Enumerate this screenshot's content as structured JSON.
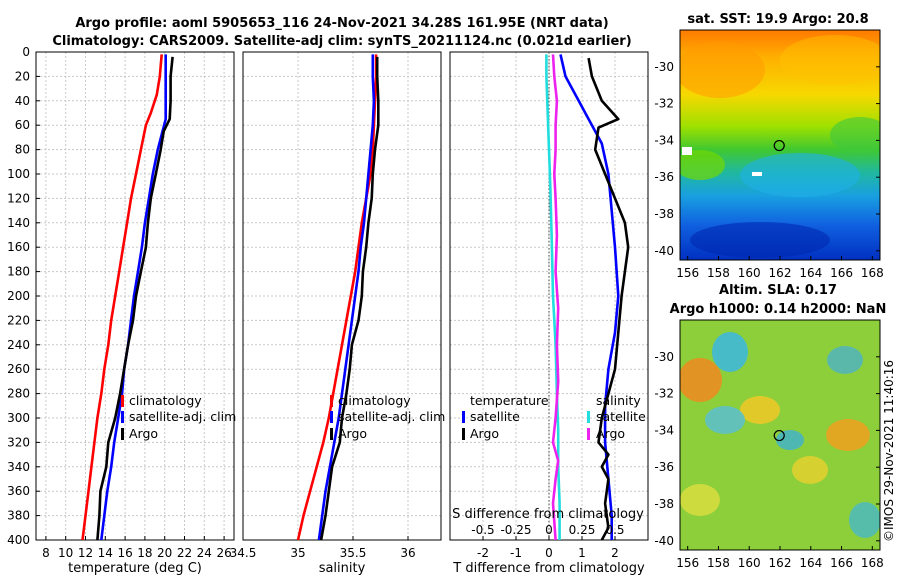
{
  "header": {
    "title_line1": "Argo profile: aoml 5905653_116 24-Nov-2021 34.28S 161.95E (NRT data)",
    "title_line2": "Climatology: CARS2009. Satellite-adj clim: synTS_20211124.nc (0.021d earlier)"
  },
  "credit": "©IMOS 29-Nov-2021 11:40:16",
  "colors": {
    "climatology": "#ff0000",
    "satellite": "#0000ff",
    "argo": "#000000",
    "cyan": "#22dddd",
    "magenta": "#ee22ee"
  },
  "chart_data": [
    {
      "type": "line",
      "name": "temperature",
      "xlabel": "temperature (deg C)",
      "ylabel": "",
      "xlim": [
        7,
        27
      ],
      "ylim": [
        400,
        0
      ],
      "xticks": [
        "8",
        "10",
        "12",
        "14",
        "16",
        "18",
        "20",
        "22",
        "24",
        "26"
      ],
      "yticks": [
        "0",
        "20",
        "40",
        "60",
        "80",
        "100",
        "120",
        "140",
        "160",
        "180",
        "200",
        "220",
        "240",
        "260",
        "280",
        "300",
        "320",
        "340",
        "360",
        "380",
        "400"
      ],
      "grid": true,
      "legend": [
        "climatology",
        "satellite-adj. clim",
        "Argo"
      ],
      "series": [
        {
          "name": "climatology",
          "color": "red",
          "points": [
            [
              19.7,
              2
            ],
            [
              19.5,
              20
            ],
            [
              19.2,
              35
            ],
            [
              18.6,
              50
            ],
            [
              18.1,
              60
            ],
            [
              17.6,
              80
            ],
            [
              17.1,
              100
            ],
            [
              16.6,
              120
            ],
            [
              16.2,
              140
            ],
            [
              15.8,
              160
            ],
            [
              15.4,
              180
            ],
            [
              15.0,
              200
            ],
            [
              14.6,
              220
            ],
            [
              14.3,
              240
            ],
            [
              13.9,
              260
            ],
            [
              13.6,
              280
            ],
            [
              13.2,
              300
            ],
            [
              12.9,
              320
            ],
            [
              12.6,
              340
            ],
            [
              12.3,
              360
            ],
            [
              12.0,
              380
            ],
            [
              11.7,
              400
            ]
          ]
        },
        {
          "name": "satellite-adj. clim",
          "color": "blue",
          "points": [
            [
              20.1,
              2
            ],
            [
              20.1,
              20
            ],
            [
              20.1,
              55
            ],
            [
              19.3,
              80
            ],
            [
              18.8,
              100
            ],
            [
              18.4,
              120
            ],
            [
              18.0,
              140
            ],
            [
              17.7,
              160
            ],
            [
              17.3,
              180
            ],
            [
              16.9,
              200
            ],
            [
              16.6,
              220
            ],
            [
              16.3,
              240
            ],
            [
              15.9,
              260
            ],
            [
              15.7,
              280
            ],
            [
              15.3,
              300
            ],
            [
              14.9,
              320
            ],
            [
              14.6,
              340
            ],
            [
              14.2,
              360
            ],
            [
              13.9,
              380
            ],
            [
              13.6,
              400
            ]
          ]
        },
        {
          "name": "Argo",
          "color": "black",
          "points": [
            [
              20.8,
              4
            ],
            [
              20.6,
              20
            ],
            [
              20.6,
              40
            ],
            [
              20.5,
              55
            ],
            [
              19.9,
              65
            ],
            [
              19.6,
              80
            ],
            [
              19.1,
              100
            ],
            [
              18.6,
              120
            ],
            [
              18.3,
              140
            ],
            [
              18.1,
              160
            ],
            [
              17.6,
              180
            ],
            [
              17.1,
              200
            ],
            [
              16.8,
              220
            ],
            [
              16.3,
              240
            ],
            [
              15.9,
              260
            ],
            [
              15.5,
              280
            ],
            [
              15.0,
              300
            ],
            [
              14.3,
              320
            ],
            [
              14.1,
              340
            ],
            [
              13.5,
              360
            ],
            [
              13.4,
              380
            ],
            [
              13.2,
              400
            ]
          ]
        }
      ]
    },
    {
      "type": "line",
      "name": "salinity",
      "xlabel": "salinity",
      "xlim": [
        34.5,
        36.3
      ],
      "ylim": [
        400,
        0
      ],
      "xticks": [
        "34.5",
        "35",
        "35.5",
        "36"
      ],
      "grid": true,
      "legend": [
        "climatology",
        "satellite-adj. clim",
        "Argo"
      ],
      "series": [
        {
          "name": "climatology",
          "color": "red",
          "points": [
            [
              35.71,
              2
            ],
            [
              35.71,
              20
            ],
            [
              35.7,
              40
            ],
            [
              35.69,
              60
            ],
            [
              35.68,
              80
            ],
            [
              35.66,
              100
            ],
            [
              35.62,
              120
            ],
            [
              35.58,
              140
            ],
            [
              35.55,
              160
            ],
            [
              35.52,
              180
            ],
            [
              35.48,
              200
            ],
            [
              35.44,
              220
            ],
            [
              35.4,
              240
            ],
            [
              35.36,
              260
            ],
            [
              35.32,
              280
            ],
            [
              35.28,
              300
            ],
            [
              35.23,
              320
            ],
            [
              35.17,
              340
            ],
            [
              35.11,
              360
            ],
            [
              35.05,
              380
            ],
            [
              35.0,
              400
            ]
          ]
        },
        {
          "name": "satellite-adj. clim",
          "color": "blue",
          "points": [
            [
              35.68,
              2
            ],
            [
              35.68,
              20
            ],
            [
              35.69,
              40
            ],
            [
              35.68,
              60
            ],
            [
              35.66,
              80
            ],
            [
              35.64,
              100
            ],
            [
              35.62,
              120
            ],
            [
              35.6,
              140
            ],
            [
              35.57,
              160
            ],
            [
              35.55,
              180
            ],
            [
              35.52,
              200
            ],
            [
              35.49,
              220
            ],
            [
              35.46,
              240
            ],
            [
              35.43,
              260
            ],
            [
              35.4,
              280
            ],
            [
              35.37,
              300
            ],
            [
              35.33,
              320
            ],
            [
              35.29,
              340
            ],
            [
              35.25,
              360
            ],
            [
              35.22,
              380
            ],
            [
              35.19,
              400
            ]
          ]
        },
        {
          "name": "Argo",
          "color": "black",
          "points": [
            [
              35.72,
              4
            ],
            [
              35.72,
              20
            ],
            [
              35.73,
              40
            ],
            [
              35.73,
              60
            ],
            [
              35.7,
              80
            ],
            [
              35.68,
              100
            ],
            [
              35.67,
              120
            ],
            [
              35.64,
              140
            ],
            [
              35.62,
              160
            ],
            [
              35.59,
              180
            ],
            [
              35.58,
              200
            ],
            [
              35.55,
              220
            ],
            [
              35.49,
              240
            ],
            [
              35.47,
              260
            ],
            [
              35.44,
              280
            ],
            [
              35.4,
              300
            ],
            [
              35.38,
              320
            ],
            [
              35.31,
              340
            ],
            [
              35.28,
              360
            ],
            [
              35.25,
              380
            ],
            [
              35.21,
              400
            ]
          ]
        }
      ]
    },
    {
      "type": "line",
      "name": "difference",
      "xlabel": "T difference from climatology",
      "xlabel2": "S difference from climatology",
      "xlim": [
        -3,
        3
      ],
      "ylim": [
        400,
        0
      ],
      "xticks": [
        "-2",
        "-1",
        "0",
        "1",
        "2"
      ],
      "xticks2": [
        "-0.5",
        "-0.25",
        "0",
        "0.25",
        "0.5"
      ],
      "grid": true,
      "legend_left": [
        "temperature",
        "satellite",
        "Argo"
      ],
      "legend_right": [
        "salinity",
        "satellite",
        "Argo"
      ],
      "series": [
        {
          "name": "T satellite",
          "color": "blue",
          "points": [
            [
              0.35,
              2
            ],
            [
              0.5,
              20
            ],
            [
              0.9,
              40
            ],
            [
              1.2,
              55
            ],
            [
              1.6,
              75
            ],
            [
              1.8,
              100
            ],
            [
              1.9,
              130
            ],
            [
              2.0,
              160
            ],
            [
              2.1,
              200
            ],
            [
              2.0,
              230
            ],
            [
              1.8,
              260
            ],
            [
              1.7,
              290
            ],
            [
              1.7,
              320
            ],
            [
              1.8,
              350
            ],
            [
              1.9,
              380
            ],
            [
              1.9,
              400
            ]
          ]
        },
        {
          "name": "T Argo",
          "color": "black",
          "points": [
            [
              1.2,
              5
            ],
            [
              1.3,
              20
            ],
            [
              1.6,
              40
            ],
            [
              2.1,
              55
            ],
            [
              1.5,
              62
            ],
            [
              1.4,
              80
            ],
            [
              1.7,
              100
            ],
            [
              2.0,
              120
            ],
            [
              2.3,
              140
            ],
            [
              2.4,
              160
            ],
            [
              2.3,
              180
            ],
            [
              2.2,
              200
            ],
            [
              2.1,
              230
            ],
            [
              2.0,
              260
            ],
            [
              1.8,
              280
            ],
            [
              1.6,
              300
            ],
            [
              1.5,
              320
            ],
            [
              1.8,
              330
            ],
            [
              1.6,
              340
            ],
            [
              1.8,
              350
            ],
            [
              1.7,
              370
            ],
            [
              1.8,
              390
            ],
            [
              1.6,
              400
            ]
          ]
        },
        {
          "name": "S satellite",
          "color": "cyan",
          "points": [
            [
              -0.02,
              2
            ],
            [
              -0.02,
              20
            ],
            [
              -0.01,
              50
            ],
            [
              0.0,
              80
            ],
            [
              0.01,
              110
            ],
            [
              0.02,
              150
            ],
            [
              0.03,
              200
            ],
            [
              0.05,
              240
            ],
            [
              0.06,
              280
            ],
            [
              0.07,
              310
            ],
            [
              0.07,
              340
            ],
            [
              0.08,
              370
            ],
            [
              0.08,
              400
            ]
          ]
        },
        {
          "name": "S Argo",
          "color": "magenta",
          "points": [
            [
              0.03,
              2
            ],
            [
              0.04,
              20
            ],
            [
              0.06,
              40
            ],
            [
              0.05,
              60
            ],
            [
              0.05,
              80
            ],
            [
              0.04,
              100
            ],
            [
              0.05,
              120
            ],
            [
              0.06,
              150
            ],
            [
              0.05,
              180
            ],
            [
              0.07,
              210
            ],
            [
              0.06,
              240
            ],
            [
              0.07,
              270
            ],
            [
              0.05,
              300
            ],
            [
              0.03,
              320
            ],
            [
              0.07,
              335
            ],
            [
              0.05,
              350
            ],
            [
              0.03,
              370
            ],
            [
              0.04,
              385
            ],
            [
              0.05,
              400
            ]
          ]
        }
      ]
    },
    {
      "type": "heatmap",
      "name": "sst_map",
      "title": "sat. SST: 19.9 Argo: 20.8",
      "xticks": [
        "156",
        "158",
        "160",
        "162",
        "164",
        "166",
        "168"
      ],
      "yticks": [
        "-30",
        "-32",
        "-34",
        "-36",
        "-38",
        "-40"
      ],
      "xlim": [
        155.5,
        168.5
      ],
      "ylim": [
        -40.5,
        -28
      ],
      "marker": {
        "lon": 161.95,
        "lat": -34.28
      }
    },
    {
      "type": "heatmap",
      "name": "sla_map",
      "title_line1": "Altim. SLA: 0.17",
      "title_line2": "Argo h1000: 0.14 h2000: NaN",
      "xticks": [
        "156",
        "158",
        "160",
        "162",
        "164",
        "166",
        "168"
      ],
      "yticks": [
        "-30",
        "-32",
        "-34",
        "-36",
        "-38",
        "-40"
      ],
      "xlim": [
        155.5,
        168.5
      ],
      "ylim": [
        -40.5,
        -28
      ],
      "marker": {
        "lon": 161.95,
        "lat": -34.28
      }
    }
  ]
}
